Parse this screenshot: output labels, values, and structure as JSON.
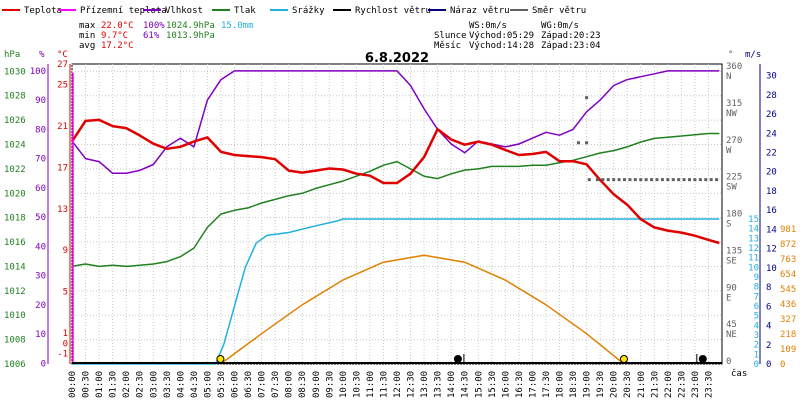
{
  "chart_data": {
    "type": "line",
    "title": "6.8.2022",
    "x_axis_label": "čas",
    "x_ticks": [
      "00:00",
      "00:30",
      "01:00",
      "01:30",
      "02:00",
      "02:30",
      "03:00",
      "03:30",
      "04:00",
      "04:30",
      "05:00",
      "05:30",
      "06:00",
      "06:30",
      "07:00",
      "07:30",
      "08:00",
      "08:30",
      "09:00",
      "09:30",
      "10:00",
      "10:30",
      "11:00",
      "11:30",
      "12:00",
      "12:30",
      "13:00",
      "13:30",
      "14:00",
      "14:30",
      "15:00",
      "15:30",
      "16:00",
      "16:30",
      "17:00",
      "17:30",
      "18:00",
      "18:30",
      "19:00",
      "19:30",
      "20:00",
      "20:30",
      "21:00",
      "21:30",
      "22:00",
      "22:30",
      "23:00",
      "23:30"
    ],
    "legend": [
      {
        "name": "Teplota",
        "color": "#e00000"
      },
      {
        "name": "Přízemní teplota",
        "color": "#ff00ff"
      },
      {
        "name": "Vlhkost",
        "color": "#8000c0"
      },
      {
        "name": "Tlak",
        "color": "#208020"
      },
      {
        "name": "Srážky",
        "color": "#20b0e0"
      },
      {
        "name": "Rychlost větru",
        "color": "#000000"
      },
      {
        "name": "Náraz větru",
        "color": "#000080"
      },
      {
        "name": "Směr větru",
        "color": "#606060"
      }
    ],
    "stats": {
      "max_label": "max",
      "max_temp": "22.0°C",
      "max_hum": "100%",
      "max_press": "1024.9hPa",
      "max_rain": "15.0mm",
      "min_label": "min",
      "min_temp": "9.7°C",
      "min_hum": "61%",
      "min_press": "1013.9hPa",
      "avg_label": "avg",
      "avg_temp": "17.2°C",
      "ws": "WS:0m/s",
      "wg": "WG:0m/s",
      "sun_label": "Slunce",
      "sun_rise": "Východ:05:29",
      "sun_set": "Západ:20:23",
      "moon_label": "Měsíc",
      "moon_rise": "Východ:14:28",
      "moon_set": "Západ:23:04"
    },
    "axes": {
      "hpa": {
        "unit": "hPa",
        "ticks": [
          1006,
          1008,
          1010,
          1012,
          1014,
          1016,
          1018,
          1020,
          1022,
          1024,
          1026,
          1028,
          1030
        ],
        "color": "#208020"
      },
      "pct": {
        "unit": "%",
        "ticks": [
          0,
          10,
          20,
          30,
          40,
          50,
          60,
          70,
          80,
          90,
          100
        ],
        "color": "#8000c0"
      },
      "degc": {
        "unit": "°C",
        "ticks": [
          -1,
          1,
          5,
          9,
          13,
          17,
          21,
          25,
          27
        ],
        "tick_values": [
          -1,
          0,
          1,
          5,
          9,
          13,
          17,
          21,
          25,
          27
        ],
        "color": "#e00000"
      },
      "dir": {
        "unit": "°",
        "labels": [
          {
            "v": "0",
            "c": ""
          },
          {
            "v": "45",
            "c": "NE"
          },
          {
            "v": "90",
            "c": "E"
          },
          {
            "v": "135",
            "c": "SE"
          },
          {
            "v": "180",
            "c": "S"
          },
          {
            "v": "225",
            "c": "SW"
          },
          {
            "v": "270",
            "c": "W"
          },
          {
            "v": "315",
            "c": "NW"
          },
          {
            "v": "360",
            "c": "N"
          }
        ],
        "color": "#606060"
      },
      "ms": {
        "unit": "m/s",
        "ticks": [
          0,
          2,
          4,
          6,
          8,
          10,
          12,
          14,
          16,
          18,
          20,
          22,
          24,
          26,
          28,
          30
        ],
        "color": "#000080"
      },
      "mm": {
        "unit": "mm",
        "ticks": [
          0,
          1,
          2,
          3,
          4,
          5,
          6,
          7,
          8,
          9,
          10,
          11,
          12,
          13,
          14,
          15
        ],
        "color": "#20b0e0"
      },
      "sunalt": {
        "ticks": [
          0,
          109,
          218,
          327,
          436,
          545,
          654,
          763,
          872,
          981
        ],
        "color": "#e08000"
      }
    },
    "series": {
      "temperature": {
        "color": "#e00000",
        "x": [
          0,
          0.5,
          1,
          1.5,
          2,
          2.5,
          3,
          3.5,
          4,
          4.5,
          5,
          5.5,
          6,
          6.5,
          7,
          7.5,
          8,
          8.5,
          9,
          9.5,
          10,
          10.5,
          11,
          11.5,
          12,
          12.5,
          13,
          13.5,
          14,
          14.5,
          15,
          15.5,
          16,
          16.5,
          17,
          17.5,
          18,
          18.5,
          19,
          19.5,
          20,
          20.5,
          21,
          21.5,
          22,
          22.5,
          23,
          23.5,
          23.9
        ],
        "y": [
          19.5,
          21.5,
          21.6,
          21.0,
          20.8,
          20.1,
          19.3,
          18.8,
          19.0,
          19.5,
          19.9,
          18.5,
          18.2,
          18.1,
          18.0,
          17.8,
          16.7,
          16.5,
          16.7,
          16.9,
          16.8,
          16.4,
          16.2,
          15.5,
          15.5,
          16.4,
          18.0,
          20.7,
          19.7,
          19.2,
          19.5,
          19.2,
          18.7,
          18.2,
          18.3,
          18.5,
          17.6,
          17.6,
          17.3,
          15.8,
          14.4,
          13.4,
          12.0,
          11.2,
          10.9,
          10.7,
          10.4,
          10.0,
          9.7
        ]
      },
      "humidity": {
        "color": "#8000c0",
        "x": [
          0,
          0.5,
          1,
          1.5,
          2,
          2.5,
          3,
          3.5,
          4,
          4.5,
          5,
          5.5,
          6,
          6.5,
          7,
          7.5,
          8,
          8.5,
          9,
          9.5,
          10,
          10.5,
          11,
          11.5,
          12,
          12.5,
          13,
          13.5,
          14,
          14.5,
          15,
          15.5,
          16,
          16.5,
          17,
          17.5,
          18,
          18.5,
          19,
          19.5,
          20,
          20.5,
          21,
          21.5,
          22,
          22.5,
          23,
          23.5,
          23.9
        ],
        "y": [
          76,
          70,
          69,
          65,
          65,
          66,
          68,
          74,
          77,
          74,
          90,
          97,
          100,
          100,
          100,
          100,
          100,
          100,
          100,
          100,
          100,
          100,
          100,
          100,
          100,
          95,
          87,
          80,
          75,
          72,
          76,
          75,
          74,
          75,
          77,
          79,
          78,
          80,
          86,
          90,
          95,
          97,
          98,
          99,
          100,
          100,
          100,
          100,
          100
        ]
      },
      "pressure": {
        "color": "#208020",
        "x": [
          0,
          0.5,
          1,
          1.5,
          2,
          2.5,
          3,
          3.5,
          4,
          4.5,
          5,
          5.5,
          6,
          6.5,
          7,
          7.5,
          8,
          8.5,
          9,
          9.5,
          10,
          10.5,
          11,
          11.5,
          12,
          12.5,
          13,
          13.5,
          14,
          14.5,
          15,
          15.5,
          16,
          16.5,
          17,
          17.5,
          18,
          18.5,
          19,
          19.5,
          20,
          20.5,
          21,
          21.5,
          22,
          22.5,
          23,
          23.5,
          23.9
        ],
        "y": [
          1014.0,
          1014.2,
          1014.0,
          1014.1,
          1014.0,
          1014.1,
          1014.2,
          1014.4,
          1014.8,
          1015.5,
          1017.2,
          1018.3,
          1018.6,
          1018.8,
          1019.2,
          1019.5,
          1019.8,
          1020.0,
          1020.4,
          1020.7,
          1021.0,
          1021.4,
          1021.8,
          1022.3,
          1022.6,
          1022.0,
          1021.4,
          1021.2,
          1021.6,
          1021.9,
          1022.0,
          1022.2,
          1022.2,
          1022.2,
          1022.3,
          1022.3,
          1022.5,
          1022.7,
          1023.0,
          1023.3,
          1023.5,
          1023.8,
          1024.2,
          1024.5,
          1024.6,
          1024.7,
          1024.8,
          1024.9,
          1024.9
        ]
      },
      "rain": {
        "color": "#20b0e0",
        "x": [
          0,
          5.3,
          5.6,
          6.0,
          6.4,
          6.8,
          7.2,
          8.0,
          9.0,
          9.8,
          10,
          23.9
        ],
        "y": [
          0,
          0,
          2.0,
          6.0,
          10.0,
          12.5,
          13.3,
          13.6,
          14.3,
          14.8,
          15.0,
          15.0
        ]
      },
      "sun_altitude": {
        "color": "#e08000",
        "x": [
          5.48,
          7.0,
          8.5,
          10.0,
          11.5,
          13.0,
          14.5,
          16.0,
          17.5,
          19.0,
          20.38
        ],
        "y": [
          0,
          220,
          430,
          610,
          740,
          790,
          740,
          610,
          430,
          220,
          0
        ]
      },
      "wind_direction": {
        "color": "#606060",
        "x": [
          18.7,
          19.0,
          19.1,
          19.4,
          19.6,
          19.8,
          20.0,
          20.2,
          20.4,
          20.6,
          20.8,
          21.0,
          21.2,
          21.4,
          21.6,
          21.8,
          22.0,
          22.2,
          22.4,
          22.6,
          22.8,
          23.0,
          23.2,
          23.4,
          23.6,
          23.8
        ],
        "y": [
          270,
          270,
          225,
          225,
          225,
          225,
          225,
          225,
          225,
          225,
          225,
          225,
          225,
          225,
          225,
          225,
          225,
          225,
          225,
          225,
          225,
          225,
          225,
          225,
          225,
          225
        ]
      },
      "wind_dir_high": {
        "x": [
          19.0
        ],
        "y": [
          325
        ]
      }
    },
    "markers": {
      "sunrise": 5.48,
      "sunset": 20.38,
      "moonrise": 14.47,
      "moonset": 23.07
    }
  }
}
